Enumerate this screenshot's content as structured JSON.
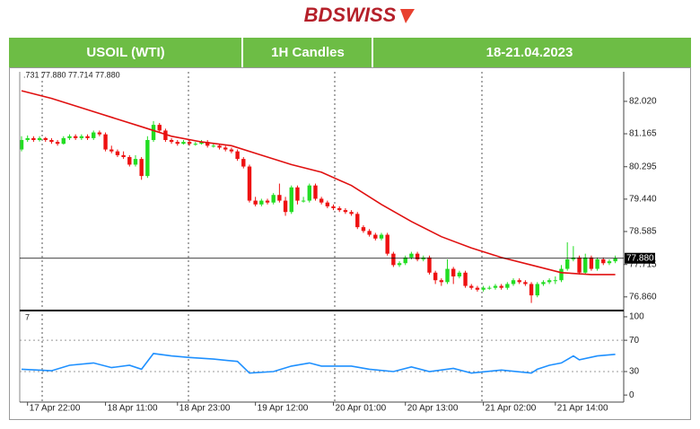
{
  "header": {
    "logo": "BDSWISS",
    "instrument": "USOIL (WTI)",
    "timeframe": "1H Candles",
    "dates": "18-21.04.2023"
  },
  "chart_data": {
    "type": "candlestick",
    "indicator_text": ".731 77.880 77.714 77.880",
    "ylim": [
      76.5,
      82.8
    ],
    "yticks": [
      {
        "value": 82.02,
        "label": "82.020"
      },
      81.165,
      80.295,
      {
        "value": 79.44,
        "label": "79.440"
      },
      78.585,
      77.715,
      {
        "value": 76.86,
        "label": "76.860"
      }
    ],
    "xlim": [
      -0.3,
      100.4
    ],
    "xticks": [
      {
        "value": 1,
        "label": "17 Apr 22:00"
      },
      {
        "value": 14,
        "label": "18 Apr 11:00"
      },
      {
        "value": 26,
        "label": "18 Apr 23:00"
      },
      {
        "value": 39,
        "label": "19 Apr 12:00"
      },
      {
        "value": 52,
        "label": "20 Apr 01:00"
      },
      {
        "value": 64,
        "label": "20 Apr 13:00"
      },
      {
        "value": 77,
        "label": "21 Apr 02:00"
      },
      {
        "value": 89,
        "label": "21 Apr 14:00"
      }
    ],
    "up_color": "#22dd22",
    "down_color": "#ee1111",
    "current_price": {
      "value": 77.88,
      "label": "77.880"
    },
    "ohlc": [
      [
        80.75,
        81.1,
        80.7,
        81.0
      ],
      [
        81.0,
        81.12,
        80.95,
        81.05
      ],
      [
        81.05,
        81.1,
        80.95,
        81.0
      ],
      [
        81.0,
        81.1,
        80.96,
        81.05
      ],
      [
        81.05,
        81.08,
        80.95,
        81.0
      ],
      [
        81.0,
        81.05,
        80.9,
        80.95
      ],
      [
        80.95,
        81.0,
        80.85,
        80.9
      ],
      [
        80.9,
        81.1,
        80.88,
        81.05
      ],
      [
        81.05,
        81.15,
        81.0,
        81.1
      ],
      [
        81.1,
        81.15,
        81.0,
        81.05
      ],
      [
        81.05,
        81.15,
        81.0,
        81.1
      ],
      [
        81.1,
        81.15,
        81.0,
        81.05
      ],
      [
        81.05,
        81.25,
        81.0,
        81.2
      ],
      [
        81.2,
        81.25,
        81.1,
        81.15
      ],
      [
        81.15,
        81.2,
        80.7,
        80.75
      ],
      [
        80.75,
        80.85,
        80.65,
        80.7
      ],
      [
        80.7,
        80.75,
        80.55,
        80.6
      ],
      [
        80.6,
        80.7,
        80.5,
        80.55
      ],
      [
        80.55,
        80.6,
        80.3,
        80.35
      ],
      [
        80.35,
        80.6,
        80.3,
        80.5
      ],
      [
        80.5,
        80.55,
        79.95,
        80.05
      ],
      [
        80.05,
        81.1,
        80.0,
        81.0
      ],
      [
        81.0,
        81.5,
        80.95,
        81.4
      ],
      [
        81.4,
        81.45,
        81.2,
        81.25
      ],
      [
        81.25,
        81.3,
        80.95,
        81.0
      ],
      [
        81.0,
        81.05,
        80.9,
        80.95
      ],
      [
        80.95,
        81.0,
        80.85,
        80.9
      ],
      [
        80.9,
        81.0,
        80.88,
        80.95
      ],
      [
        80.95,
        81.0,
        80.85,
        80.9
      ],
      [
        80.9,
        80.95,
        80.85,
        80.9
      ],
      [
        80.9,
        81.0,
        80.88,
        80.95
      ],
      [
        80.95,
        81.0,
        80.8,
        80.85
      ],
      [
        80.85,
        80.9,
        80.8,
        80.85
      ],
      [
        80.85,
        80.9,
        80.75,
        80.8
      ],
      [
        80.8,
        80.85,
        80.7,
        80.75
      ],
      [
        80.75,
        80.8,
        80.65,
        80.7
      ],
      [
        80.7,
        80.75,
        80.45,
        80.5
      ],
      [
        80.5,
        80.55,
        80.25,
        80.3
      ],
      [
        80.3,
        80.35,
        79.35,
        79.4
      ],
      [
        79.4,
        79.5,
        79.25,
        79.3
      ],
      [
        79.3,
        79.45,
        79.25,
        79.4
      ],
      [
        79.4,
        79.45,
        79.3,
        79.35
      ],
      [
        79.35,
        79.6,
        79.3,
        79.55
      ],
      [
        79.55,
        79.85,
        79.35,
        79.4
      ],
      [
        79.4,
        79.5,
        79.0,
        79.1
      ],
      [
        79.1,
        79.8,
        79.05,
        79.75
      ],
      [
        79.75,
        79.8,
        79.3,
        79.4
      ],
      [
        79.4,
        79.5,
        79.35,
        79.4
      ],
      [
        79.4,
        79.85,
        79.35,
        79.8
      ],
      [
        79.8,
        79.85,
        79.4,
        79.45
      ],
      [
        79.45,
        79.5,
        79.3,
        79.35
      ],
      [
        79.35,
        79.4,
        79.2,
        79.25
      ],
      [
        79.25,
        79.3,
        79.15,
        79.2
      ],
      [
        79.2,
        79.25,
        79.1,
        79.15
      ],
      [
        79.15,
        79.2,
        79.05,
        79.1
      ],
      [
        79.1,
        79.15,
        79.0,
        79.05
      ],
      [
        79.05,
        79.1,
        78.65,
        78.7
      ],
      [
        78.7,
        78.75,
        78.55,
        78.6
      ],
      [
        78.6,
        78.65,
        78.45,
        78.5
      ],
      [
        78.5,
        78.55,
        78.35,
        78.4
      ],
      [
        78.4,
        78.55,
        78.35,
        78.5
      ],
      [
        78.5,
        78.55,
        77.95,
        78.0
      ],
      [
        78.0,
        78.05,
        77.65,
        77.7
      ],
      [
        77.7,
        77.8,
        77.65,
        77.75
      ],
      [
        77.75,
        77.95,
        77.7,
        77.9
      ],
      [
        77.9,
        78.05,
        77.85,
        78.0
      ],
      [
        78.0,
        78.05,
        77.8,
        77.85
      ],
      [
        77.85,
        77.95,
        77.8,
        77.9
      ],
      [
        77.9,
        77.95,
        77.45,
        77.5
      ],
      [
        77.5,
        77.55,
        77.2,
        77.3
      ],
      [
        77.3,
        77.35,
        77.15,
        77.25
      ],
      [
        77.25,
        77.85,
        77.2,
        77.6
      ],
      [
        77.6,
        77.65,
        77.2,
        77.4
      ],
      [
        77.4,
        77.55,
        77.35,
        77.5
      ],
      [
        77.5,
        77.55,
        77.1,
        77.15
      ],
      [
        77.15,
        77.2,
        77.05,
        77.1
      ],
      [
        77.1,
        77.15,
        77.0,
        77.05
      ],
      [
        77.05,
        77.15,
        77.0,
        77.1
      ],
      [
        77.1,
        77.15,
        77.05,
        77.1
      ],
      [
        77.1,
        77.2,
        77.05,
        77.15
      ],
      [
        77.15,
        77.2,
        77.05,
        77.1
      ],
      [
        77.1,
        77.25,
        77.05,
        77.2
      ],
      [
        77.2,
        77.35,
        77.15,
        77.3
      ],
      [
        77.3,
        77.35,
        77.2,
        77.25
      ],
      [
        77.25,
        77.3,
        77.15,
        77.2
      ],
      [
        77.2,
        77.25,
        76.7,
        76.9
      ],
      [
        76.9,
        77.25,
        76.85,
        77.2
      ],
      [
        77.2,
        77.3,
        77.15,
        77.25
      ],
      [
        77.25,
        77.35,
        77.2,
        77.3
      ],
      [
        77.3,
        77.4,
        77.2,
        77.3
      ],
      [
        77.3,
        77.7,
        77.25,
        77.6
      ],
      [
        77.6,
        78.3,
        77.55,
        77.85
      ],
      [
        77.85,
        78.2,
        77.8,
        77.9
      ],
      [
        77.9,
        77.95,
        77.45,
        77.5
      ],
      [
        77.5,
        78.0,
        77.45,
        77.9
      ],
      [
        77.9,
        77.95,
        77.55,
        77.6
      ],
      [
        77.6,
        77.9,
        77.55,
        77.85
      ],
      [
        77.85,
        77.9,
        77.7,
        77.75
      ],
      [
        77.75,
        77.85,
        77.7,
        77.8
      ],
      [
        77.8,
        77.95,
        77.75,
        77.88
      ]
    ],
    "ma": {
      "color": "#e01010",
      "x": [
        0,
        5,
        10,
        15,
        20,
        25,
        30,
        35,
        40,
        45,
        50,
        55,
        60,
        65,
        70,
        75,
        80,
        85,
        90,
        95,
        99
      ],
      "values": [
        82.3,
        82.1,
        81.85,
        81.6,
        81.35,
        81.1,
        80.95,
        80.85,
        80.6,
        80.35,
        80.15,
        79.8,
        79.3,
        78.85,
        78.45,
        78.15,
        77.9,
        77.7,
        77.5,
        77.45,
        77.45
      ]
    },
    "rsi": {
      "label": "7",
      "color": "#1e90ff",
      "ylim": [
        -9,
        108
      ],
      "yticks": [
        100,
        70,
        30,
        0
      ],
      "x": [
        0,
        5,
        8,
        12,
        15,
        18,
        20,
        22,
        25,
        28,
        32,
        36,
        38,
        42,
        45,
        48,
        50,
        55,
        58,
        62,
        65,
        68,
        72,
        75,
        80,
        85,
        86,
        88,
        90,
        92,
        93,
        96,
        99
      ],
      "values": [
        33,
        31,
        38,
        41,
        35,
        38,
        33,
        53,
        50,
        48,
        46,
        43,
        28,
        30,
        37,
        41,
        37,
        37,
        33,
        30,
        36,
        30,
        34,
        28,
        32,
        28,
        33,
        38,
        41,
        50,
        45,
        50,
        52
      ]
    }
  }
}
